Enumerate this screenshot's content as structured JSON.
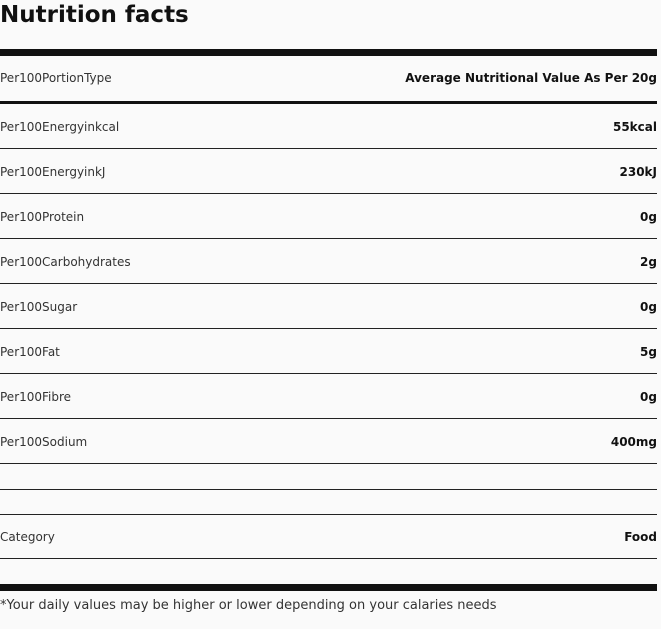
{
  "title": "Nutrition facts",
  "header": {
    "label": "Per100PortionType",
    "value": "Average Nutritional Value As Per 20g"
  },
  "rows": [
    {
      "label": "Per100Energyinkcal",
      "value": "55kcal"
    },
    {
      "label": "Per100EnergyinkJ",
      "value": "230kJ"
    },
    {
      "label": "Per100Protein",
      "value": "0g"
    },
    {
      "label": "Per100Carbohydrates",
      "value": "2g"
    },
    {
      "label": "Per100Sugar",
      "value": "0g"
    },
    {
      "label": "Per100Fat",
      "value": "5g"
    },
    {
      "label": "Per100Fibre",
      "value": "0g"
    },
    {
      "label": "Per100Sodium",
      "value": "400mg"
    }
  ],
  "category": {
    "label": "Category",
    "value": "Food"
  },
  "footnote": "*Your daily values may be higher or lower depending on your calaries needs"
}
